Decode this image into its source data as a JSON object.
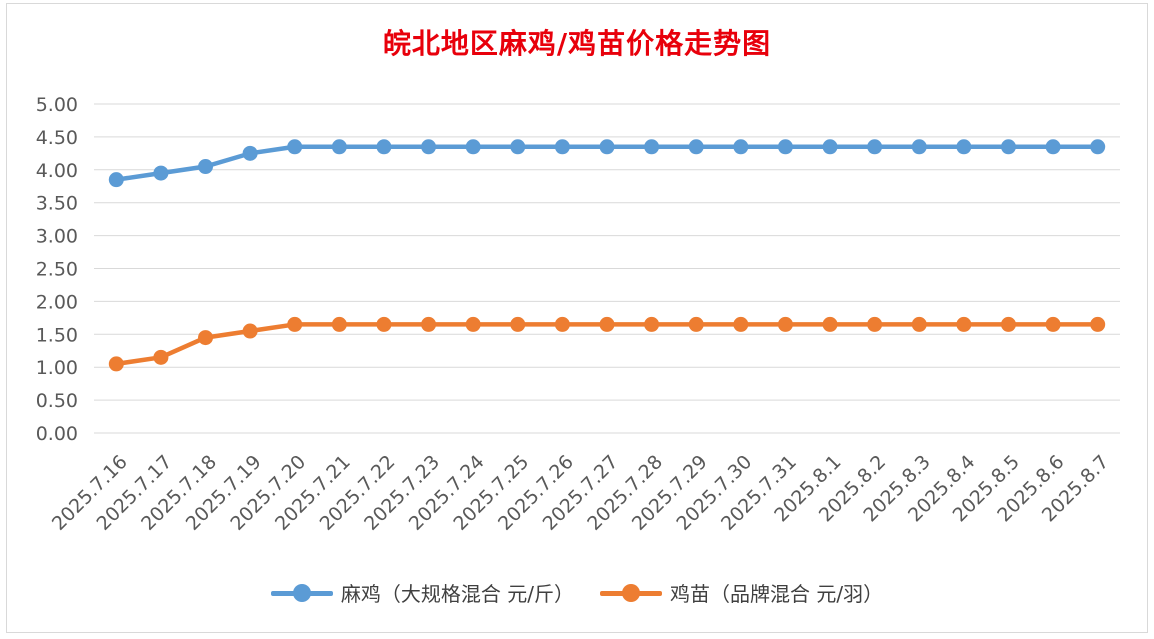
{
  "chart_data": {
    "type": "line",
    "title": "皖北地区麻鸡/鸡苗价格走势图",
    "categories": [
      "2025.7.16",
      "2025.7.17",
      "2025.7.18",
      "2025.7.19",
      "2025.7.20",
      "2025.7.21",
      "2025.7.22",
      "2025.7.23",
      "2025.7.24",
      "2025.7.25",
      "2025.7.26",
      "2025.7.27",
      "2025.7.28",
      "2025.7.29",
      "2025.7.30",
      "2025.7.31",
      "2025.8.1",
      "2025.8.2",
      "2025.8.3",
      "2025.8.4",
      "2025.8.5",
      "2025.8.6",
      "2025.8.7"
    ],
    "series": [
      {
        "name": "麻鸡（大规格混合 元/斤）",
        "color": "#5b9bd5",
        "values": [
          3.85,
          3.95,
          4.05,
          4.25,
          4.35,
          4.35,
          4.35,
          4.35,
          4.35,
          4.35,
          4.35,
          4.35,
          4.35,
          4.35,
          4.35,
          4.35,
          4.35,
          4.35,
          4.35,
          4.35,
          4.35,
          4.35,
          4.35
        ]
      },
      {
        "name": "鸡苗（品牌混合 元/羽）",
        "color": "#ed7d31",
        "values": [
          1.05,
          1.15,
          1.45,
          1.55,
          1.65,
          1.65,
          1.65,
          1.65,
          1.65,
          1.65,
          1.65,
          1.65,
          1.65,
          1.65,
          1.65,
          1.65,
          1.65,
          1.65,
          1.65,
          1.65,
          1.65,
          1.65,
          1.65
        ]
      }
    ],
    "yticks": [
      "0.00",
      "0.50",
      "1.00",
      "1.50",
      "2.00",
      "2.50",
      "3.00",
      "3.50",
      "4.00",
      "4.50",
      "5.00"
    ],
    "ylim": [
      0,
      5
    ],
    "xlabel": "",
    "ylabel": "",
    "grid": true,
    "legend": "bottom"
  }
}
